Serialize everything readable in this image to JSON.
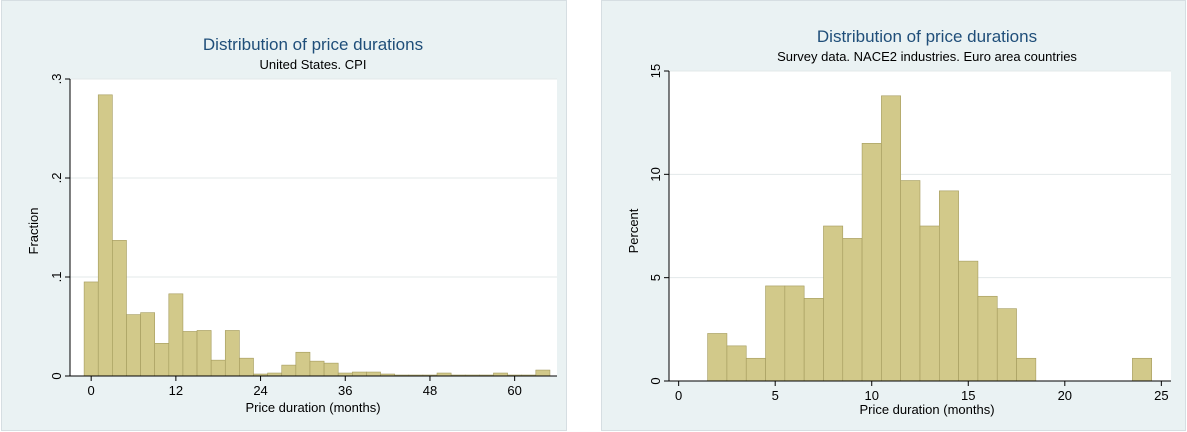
{
  "colors": {
    "background": "#eaf2f3",
    "plot_area": "#ffffff",
    "bar_fill": "#d2c98a",
    "bar_stroke": "#a39a5c",
    "title": "#1f4e79",
    "grid": "#e3e8ea"
  },
  "chart_data": [
    {
      "type": "bar",
      "title": "Distribution of price durations",
      "subtitle": "United States. CPI",
      "xlabel": "Price duration (months)",
      "ylabel": "Fraction",
      "xlim": [
        -3,
        66
      ],
      "ylim": [
        0,
        0.3
      ],
      "grid": true,
      "bin_width": 2,
      "xticks": [
        0,
        12,
        24,
        36,
        48,
        60
      ],
      "yticks": [
        0,
        0.1,
        0.2,
        0.3
      ],
      "ytick_labels": [
        "0",
        ".1",
        ".2",
        ".3"
      ],
      "bin_starts": [
        -1,
        1,
        3,
        5,
        7,
        9,
        11,
        13,
        15,
        17,
        19,
        21,
        23,
        25,
        27,
        29,
        31,
        33,
        35,
        37,
        39,
        41,
        43,
        45,
        47,
        49,
        51,
        53,
        55,
        57,
        59,
        61,
        63
      ],
      "values": [
        0.095,
        0.284,
        0.137,
        0.062,
        0.064,
        0.033,
        0.083,
        0.045,
        0.046,
        0.016,
        0.046,
        0.018,
        0.002,
        0.003,
        0.011,
        0.024,
        0.015,
        0.013,
        0.003,
        0.004,
        0.004,
        0.002,
        0.001,
        0.001,
        0.001,
        0.003,
        0.001,
        0.001,
        0.001,
        0.003,
        0.001,
        0.001,
        0.006
      ]
    },
    {
      "type": "bar",
      "title": "Distribution of price durations",
      "subtitle": "Survey data. NACE2 industries. Euro area countries",
      "xlabel": "Price duration (months)",
      "ylabel": "Percent",
      "xlim": [
        -0.5,
        25.5
      ],
      "ylim": [
        0,
        15
      ],
      "grid": true,
      "bin_width": 1,
      "xticks": [
        0,
        5,
        10,
        15,
        20,
        25
      ],
      "yticks": [
        0,
        5,
        10,
        15
      ],
      "ytick_labels": [
        "0",
        "5",
        "10",
        "15"
      ],
      "bin_starts": [
        1.5,
        2.5,
        3.5,
        4.5,
        5.5,
        6.5,
        7.5,
        8.5,
        9.5,
        10.5,
        11.5,
        12.5,
        13.5,
        14.5,
        15.5,
        16.5,
        17.5,
        23.5
      ],
      "values": [
        2.3,
        1.7,
        1.1,
        4.6,
        4.6,
        4.0,
        7.5,
        6.9,
        11.5,
        13.8,
        9.7,
        7.5,
        9.2,
        5.8,
        4.1,
        3.5,
        1.1,
        1.1
      ]
    }
  ]
}
